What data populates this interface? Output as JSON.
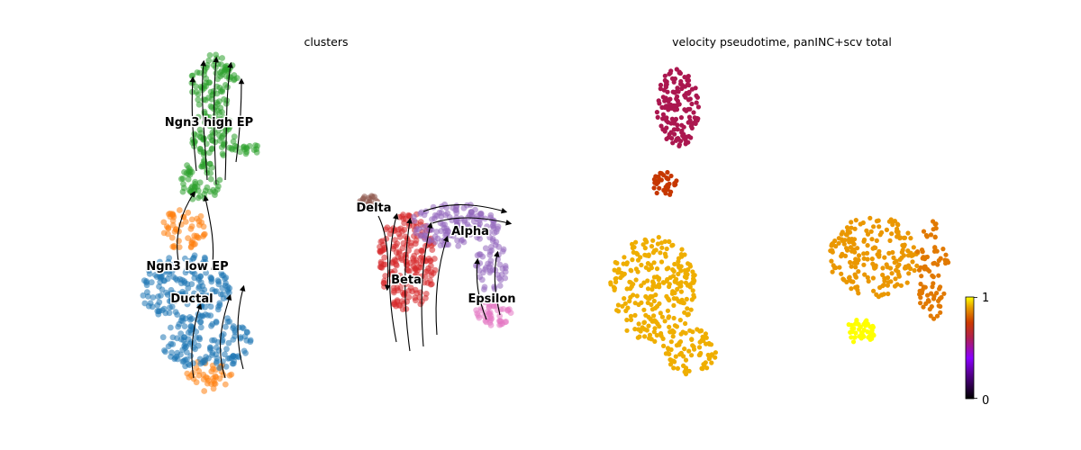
{
  "chart_data": [
    {
      "type": "scatter",
      "title": "clusters",
      "xlabel": "",
      "ylabel": "",
      "grid": false,
      "legend": "on data",
      "clusters": [
        {
          "name": "Ngn3 high EP",
          "color": "#2ca02c"
        },
        {
          "name": "Ngn3 low EP",
          "color": "#ff7f0e"
        },
        {
          "name": "Ductal",
          "color": "#1f77b4"
        },
        {
          "name": "Delta",
          "color": "#8c564b"
        },
        {
          "name": "Beta",
          "color": "#d62728"
        },
        {
          "name": "Alpha",
          "color": "#9467bd"
        },
        {
          "name": "Epsilon",
          "color": "#e377c2"
        }
      ],
      "overlay": "velocity streamlines"
    },
    {
      "type": "scatter",
      "title": "velocity pseudotime, panINC+scv total",
      "xlabel": "",
      "ylabel": "",
      "grid": false,
      "colormap": "gnuplot",
      "colorbar": {
        "range": [
          0,
          1
        ],
        "ticks": [
          "0",
          "1"
        ],
        "placement": "bottom-right"
      },
      "regions": [
        {
          "region": "top branch",
          "pseudotime": 0.45
        },
        {
          "region": "branch junction",
          "pseudotime": 0.6
        },
        {
          "region": "lower left body",
          "pseudotime": 0.88
        },
        {
          "region": "right body",
          "pseudotime": 0.84
        },
        {
          "region": "right lobe",
          "pseudotime": 0.78
        },
        {
          "region": "bottom tip",
          "pseudotime": 1.0
        }
      ]
    }
  ]
}
